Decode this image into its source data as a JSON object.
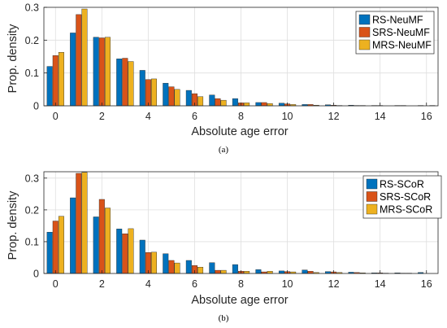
{
  "colors": {
    "RS": "#0072BD",
    "SRS": "#D95319",
    "MRS": "#EDB120"
  },
  "chart_data": [
    {
      "type": "bar",
      "caption": "(a)",
      "xlabel": "Absolute age error",
      "ylabel": "Prop. density",
      "xlim": [
        -0.5,
        16.5
      ],
      "ylim": [
        0,
        0.3
      ],
      "xticks": [
        "0",
        "2",
        "4",
        "6",
        "8",
        "10",
        "12",
        "14",
        "16"
      ],
      "yticks": [
        "0",
        "0.1",
        "0.2",
        "0.3"
      ],
      "legend_position": "top-right",
      "categories": [
        0,
        1,
        2,
        3,
        4,
        5,
        6,
        7,
        8,
        9,
        10,
        11,
        12,
        13,
        14,
        15,
        16
      ],
      "series": [
        {
          "name": "RS-NeuMF",
          "color_key": "RS",
          "values": [
            0.12,
            0.222,
            0.209,
            0.143,
            0.108,
            0.069,
            0.047,
            0.033,
            0.022,
            0.01,
            0.008,
            0.004,
            0.003,
            0.002,
            0.001,
            0.001,
            0.001
          ]
        },
        {
          "name": "SRS-NeuMF",
          "color_key": "SRS",
          "values": [
            0.153,
            0.278,
            0.207,
            0.145,
            0.08,
            0.058,
            0.037,
            0.022,
            0.009,
            0.01,
            0.006,
            0.004,
            0.002,
            0.001,
            0.001,
            0.001,
            0.0
          ]
        },
        {
          "name": "MRS-NeuMF",
          "color_key": "MRS",
          "values": [
            0.163,
            0.295,
            0.209,
            0.135,
            0.082,
            0.05,
            0.028,
            0.017,
            0.009,
            0.007,
            0.004,
            0.002,
            0.001,
            0.001,
            0.0,
            0.0,
            0.001
          ]
        }
      ]
    },
    {
      "type": "bar",
      "caption": "(b)",
      "xlabel": "Absolute age error",
      "ylabel": "Prop. density",
      "xlim": [
        -0.5,
        16.5
      ],
      "ylim": [
        0,
        0.32
      ],
      "xticks": [
        "0",
        "2",
        "4",
        "6",
        "8",
        "10",
        "12",
        "14",
        "16"
      ],
      "yticks": [
        "0",
        "0.1",
        "0.2",
        "0.3"
      ],
      "legend_position": "top-right",
      "categories": [
        0,
        1,
        2,
        3,
        4,
        5,
        6,
        7,
        8,
        9,
        10,
        11,
        12,
        13,
        14,
        15,
        16
      ],
      "series": [
        {
          "name": "RS-SCoR",
          "color_key": "RS",
          "values": [
            0.13,
            0.238,
            0.178,
            0.14,
            0.105,
            0.062,
            0.041,
            0.034,
            0.028,
            0.012,
            0.008,
            0.011,
            0.006,
            0.004,
            0.002,
            0.002,
            0.003
          ]
        },
        {
          "name": "SRS-SCoR",
          "color_key": "SRS",
          "values": [
            0.165,
            0.315,
            0.233,
            0.125,
            0.066,
            0.041,
            0.025,
            0.01,
            0.007,
            0.005,
            0.006,
            0.007,
            0.005,
            0.003,
            0.002,
            0.001,
            0.0
          ]
        },
        {
          "name": "MRS-SCoR",
          "color_key": "MRS",
          "values": [
            0.18,
            0.318,
            0.206,
            0.141,
            0.067,
            0.033,
            0.02,
            0.01,
            0.007,
            0.007,
            0.005,
            0.003,
            0.003,
            0.002,
            0.001,
            0.001,
            0.0
          ]
        }
      ]
    }
  ]
}
